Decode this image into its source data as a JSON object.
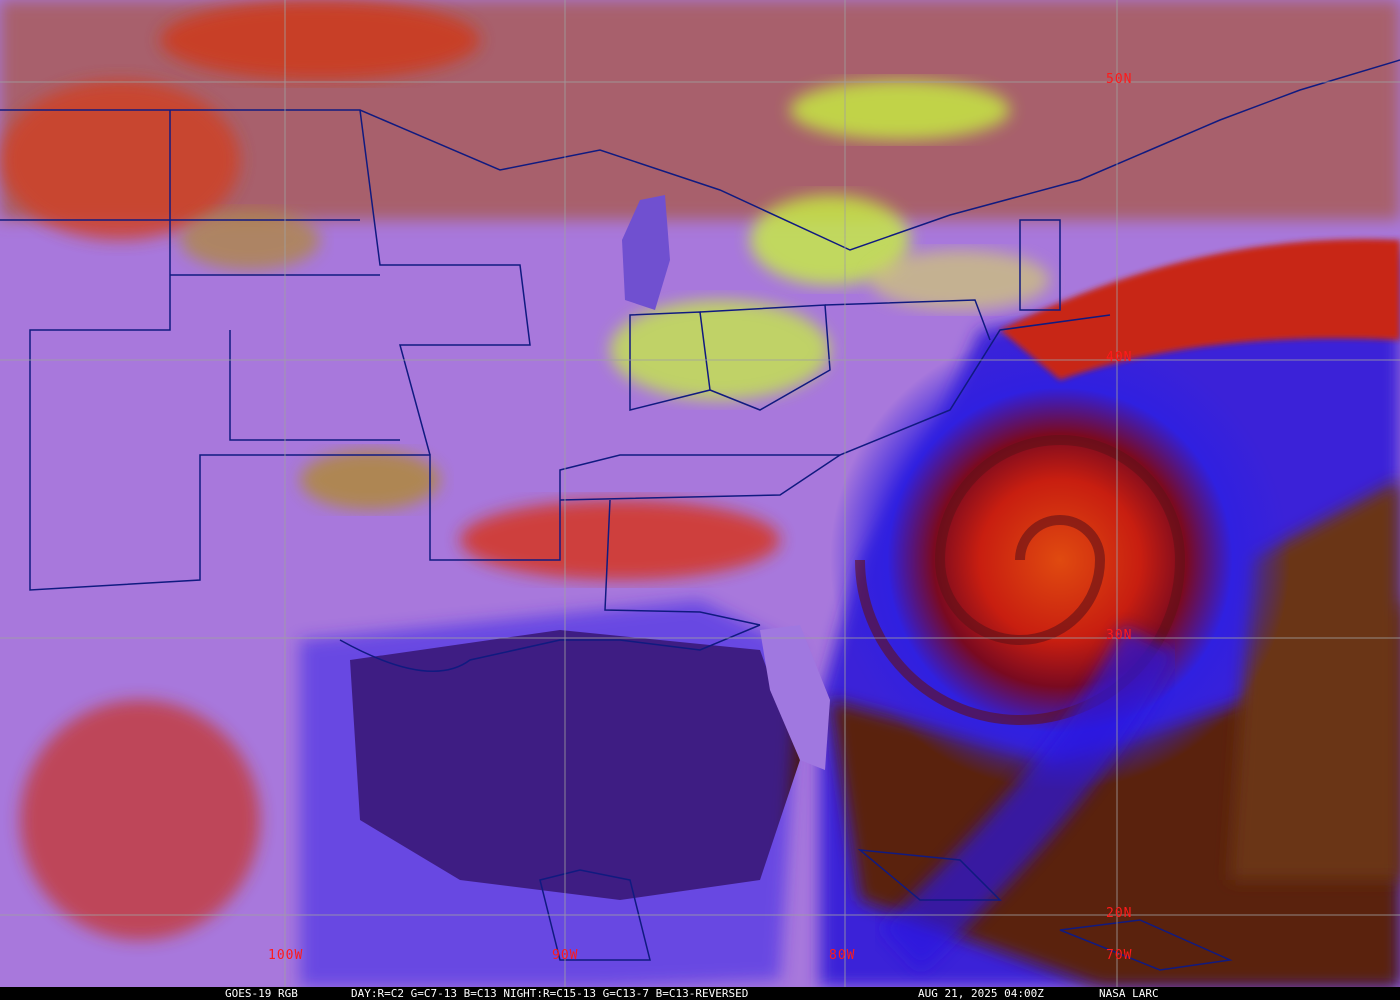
{
  "map": {
    "latitude_labels": [
      "50N",
      "40N",
      "30N",
      "20N"
    ],
    "longitude_labels": [
      "100W",
      "90W",
      "80W",
      "70W"
    ]
  },
  "caption": {
    "product": "GOES-19 RGB",
    "recipe": "DAY:R=C2 G=C7-13 B=C13 NIGHT:R=C15-13 G=C13-7 B=C13-REVERSED",
    "datetime": "AUG 21, 2025 04:00Z",
    "credit": "NASA LARC"
  },
  "colors": {
    "land_haze": "#b07be8",
    "ocean_clear": "#4a1a08",
    "deep_cloud": "#d82a10",
    "low_cloud": "#c8f040",
    "cirrus": "#3a20f0",
    "grid": "#a0a0a0",
    "border": "#101a80",
    "label": "#ff1a1a"
  }
}
